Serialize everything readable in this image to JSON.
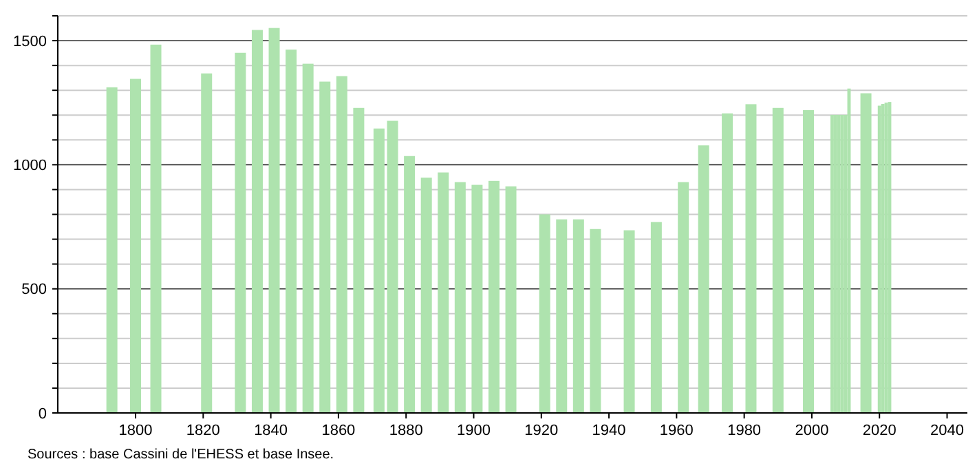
{
  "chart_data": {
    "type": "bar",
    "color": "#aee3ae",
    "x": [
      1793,
      1800,
      1806,
      1821,
      1831,
      1836,
      1841,
      1846,
      1851,
      1856,
      1861,
      1866,
      1872,
      1876,
      1881,
      1886,
      1891,
      1896,
      1901,
      1906,
      1911,
      1921,
      1926,
      1931,
      1936,
      1946,
      1954,
      1962,
      1968,
      1975,
      1982,
      1990,
      1999,
      2006,
      2007,
      2008,
      2009,
      2010,
      2011,
      2016,
      2020,
      2021,
      2022,
      2023
    ],
    "values": [
      1312,
      1346,
      1484,
      1368,
      1451,
      1543,
      1551,
      1464,
      1407,
      1335,
      1357,
      1229,
      1146,
      1177,
      1035,
      948,
      969,
      930,
      919,
      935,
      913,
      800,
      780,
      780,
      741,
      736,
      769,
      930,
      1078,
      1207,
      1244,
      1229,
      1220,
      1201,
      1201,
      1201,
      1201,
      1201,
      1307,
      1288,
      1238,
      1245,
      1250,
      1253
    ],
    "xlim": [
      1777,
      2046
    ],
    "xticks": [
      1800,
      1820,
      1840,
      1860,
      1880,
      1900,
      1920,
      1940,
      1960,
      1980,
      2000,
      2020,
      2040
    ],
    "ylim": [
      0,
      1600
    ],
    "yticks": [
      0,
      {
        "value": 100,
        "label": null
      },
      {
        "value": 200,
        "label": null
      },
      {
        "value": 300,
        "label": null
      },
      {
        "value": 400,
        "label": null
      },
      500,
      {
        "value": 600,
        "label": null
      },
      {
        "value": 700,
        "label": null
      },
      {
        "value": 800,
        "label": null
      },
      {
        "value": 900,
        "label": null
      },
      1000,
      {
        "value": 1100,
        "label": null
      },
      {
        "value": 1200,
        "label": null
      },
      {
        "value": 1300,
        "label": null
      },
      {
        "value": 1400,
        "label": null
      },
      1500,
      {
        "value": 1600,
        "label": null
      }
    ],
    "grid": "y",
    "annotations": [
      "Sources : base Cassini de l'EHESS et base Insee."
    ]
  }
}
